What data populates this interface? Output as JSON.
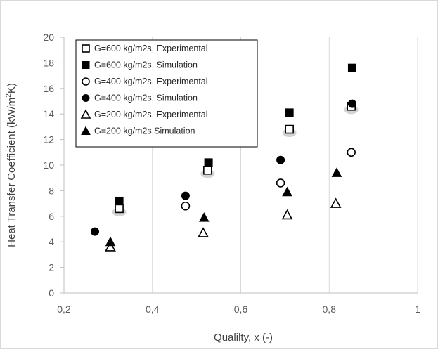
{
  "chart_data": {
    "type": "scatter",
    "title": "",
    "xlabel": "Qualilty, x (-)",
    "ylabel_main": "Heat Transfer Coefficient (kW/m",
    "ylabel_sup": "2",
    "ylabel_end": "K)",
    "xlim": [
      0.2,
      1.0
    ],
    "ylim": [
      0,
      20
    ],
    "x_ticks": [
      "0,2",
      "0,4",
      "0,6",
      "0,8",
      "1"
    ],
    "x_tick_values": [
      0.2,
      0.4,
      0.6,
      0.8,
      1.0
    ],
    "y_ticks": [
      "0",
      "2",
      "4",
      "6",
      "8",
      "10",
      "12",
      "14",
      "16",
      "18",
      "20"
    ],
    "y_tick_values": [
      0,
      2,
      4,
      6,
      8,
      10,
      12,
      14,
      16,
      18,
      20
    ],
    "grid": "vertical",
    "legend_position": "top-left",
    "series": [
      {
        "name": "G=600 kg/m2s, Experimental",
        "marker": "square-open",
        "x": [
          0.325,
          0.525,
          0.71,
          0.85
        ],
        "y": [
          6.6,
          9.6,
          12.8,
          14.6
        ]
      },
      {
        "name": "G=600 kg/m2s, Simulation",
        "marker": "square-filled",
        "x": [
          0.325,
          0.527,
          0.71,
          0.852
        ],
        "y": [
          7.2,
          10.2,
          14.1,
          17.6
        ]
      },
      {
        "name": "G=400 kg/m2s, Experimental",
        "marker": "circle-open",
        "x": [
          0.475,
          0.69,
          0.85
        ],
        "y": [
          6.8,
          8.6,
          11.0
        ]
      },
      {
        "name": "G=400 kg/m2s, Simulation",
        "marker": "circle-filled",
        "x": [
          0.27,
          0.475,
          0.69,
          0.852
        ],
        "y": [
          4.8,
          7.6,
          10.4,
          14.8
        ]
      },
      {
        "name": "G=200 kg/m2s, Experimental",
        "marker": "triangle-open",
        "x": [
          0.305,
          0.515,
          0.705,
          0.815
        ],
        "y": [
          3.6,
          4.7,
          6.1,
          7.0
        ]
      },
      {
        "name": "G=200 kg/m2s,Simulation",
        "marker": "triangle-filled",
        "x": [
          0.305,
          0.517,
          0.705,
          0.817
        ],
        "y": [
          4.0,
          5.9,
          7.9,
          9.4
        ]
      }
    ],
    "colors": {
      "marker": "#000000",
      "grid": "#d9d9d9",
      "axis": "#bfbfbf",
      "shadow": "#c8c8c8"
    }
  }
}
